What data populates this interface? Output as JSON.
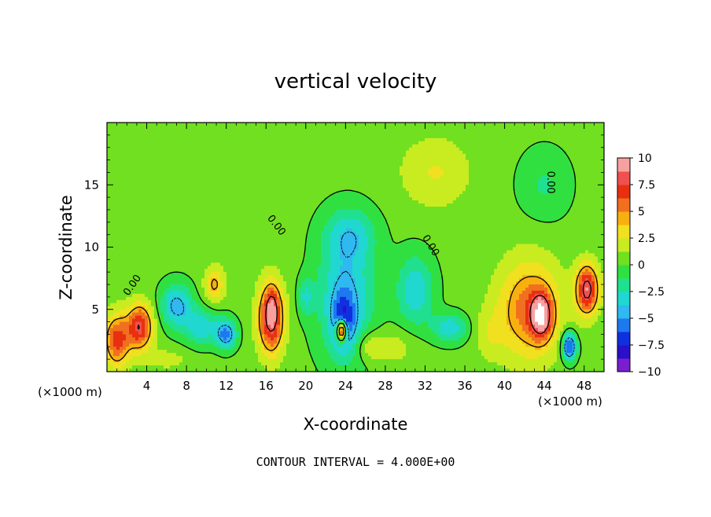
{
  "chart_data": {
    "type": "heatmap",
    "title": "vertical velocity",
    "xlabel": "X-coordinate",
    "ylabel": "Z-coordinate",
    "x_unit_label": "(×1000 m)",
    "x_unit_label_right": "(×1000 m)",
    "xlim": [
      0,
      50
    ],
    "ylim": [
      0,
      20
    ],
    "x_ticks": [
      4,
      8,
      12,
      16,
      20,
      24,
      28,
      32,
      36,
      40,
      44,
      48
    ],
    "x_tick_labels": [
      "4",
      "8",
      "12",
      "16",
      "20",
      "24",
      "28",
      "32",
      "36",
      "40",
      "44",
      "48"
    ],
    "y_ticks": [
      5,
      10,
      15
    ],
    "y_tick_labels": [
      "5",
      "10",
      "15"
    ],
    "footer": "CONTOUR INTERVAL = 4.000E+00",
    "contour_labels": [
      "0.00",
      "0.00",
      "0.00",
      "0.00"
    ],
    "colorbar": {
      "min": -10,
      "max": 10,
      "ticks": [
        10,
        7.5,
        5,
        2.5,
        0,
        -2.5,
        -5,
        -7.5,
        -10
      ],
      "tick_labels": [
        "10",
        "7.5",
        "5",
        "2.5",
        "0",
        "−2.5",
        "−5",
        "−7.5",
        "−10"
      ],
      "colors": [
        "#7a1fd0",
        "#2a10c8",
        "#1030e0",
        "#1e78f0",
        "#30b8f0",
        "#20d8d0",
        "#20e090",
        "#30e040",
        "#70e020",
        "#c8ec20",
        "#f0e020",
        "#f8b010",
        "#f07020",
        "#e83010",
        "#f05050",
        "#f8a0a0"
      ]
    },
    "field": {
      "background": 0.4,
      "features": [
        {
          "x": 1.0,
          "z": 2.5,
          "sx": 0.9,
          "sz": 1.5,
          "w": 6.5
        },
        {
          "x": 3.3,
          "z": 3.6,
          "sx": 0.9,
          "sz": 1.3,
          "w": 7.5
        },
        {
          "x": 7.0,
          "z": 5.3,
          "sx": 1.1,
          "sz": 1.2,
          "w": -5.0
        },
        {
          "x": 9.5,
          "z": 3.6,
          "sx": 1.2,
          "sz": 1.0,
          "w": -4.0
        },
        {
          "x": 10.8,
          "z": 7.0,
          "sx": 0.7,
          "sz": 1.0,
          "w": 4.0
        },
        {
          "x": 12.0,
          "z": 3.0,
          "sx": 0.7,
          "sz": 0.8,
          "w": -6.0
        },
        {
          "x": 16.5,
          "z": 4.3,
          "sx": 0.9,
          "sz": 2.0,
          "w": 8.5
        },
        {
          "x": 16.6,
          "z": 5.2,
          "sx": 0.35,
          "sz": 0.9,
          "w": 3.0
        },
        {
          "x": 20.0,
          "z": 6.0,
          "sx": 0.5,
          "sz": 1.0,
          "w": -3.0
        },
        {
          "x": 24.0,
          "z": 6.0,
          "sx": 2.0,
          "sz": 3.5,
          "w": -4.5
        },
        {
          "x": 23.8,
          "z": 4.0,
          "sx": 0.8,
          "sz": 1.6,
          "w": -5.0
        },
        {
          "x": 23.6,
          "z": 3.3,
          "sx": 0.35,
          "sz": 0.6,
          "w": 14.0
        },
        {
          "x": 24.5,
          "z": 11.0,
          "sx": 1.8,
          "sz": 1.5,
          "w": -3.0
        },
        {
          "x": 26.5,
          "z": 2.0,
          "sx": 1.0,
          "sz": 0.8,
          "w": 2.5
        },
        {
          "x": 31.0,
          "z": 6.5,
          "sx": 1.3,
          "sz": 2.0,
          "w": -4.0
        },
        {
          "x": 34.5,
          "z": 3.5,
          "sx": 1.2,
          "sz": 0.8,
          "w": -4.0
        },
        {
          "x": 33.0,
          "z": 16.0,
          "sx": 2.5,
          "sz": 2.0,
          "w": 2.2
        },
        {
          "x": 44.0,
          "z": 15.0,
          "sx": 1.8,
          "sz": 2.0,
          "w": -1.8
        },
        {
          "x": 42.5,
          "z": 5.0,
          "sx": 2.2,
          "sz": 2.8,
          "w": 5.5
        },
        {
          "x": 43.7,
          "z": 4.5,
          "sx": 0.7,
          "sz": 1.2,
          "w": 8.0
        },
        {
          "x": 46.5,
          "z": 2.0,
          "sx": 0.5,
          "sz": 0.8,
          "w": -8.0
        },
        {
          "x": 48.3,
          "z": 6.6,
          "sx": 0.8,
          "sz": 1.4,
          "w": 8.5
        },
        {
          "x": 6.0,
          "z": 1.0,
          "sx": 1.5,
          "sz": 0.6,
          "w": 1.5
        },
        {
          "x": 29.0,
          "z": 2.0,
          "sx": 1.5,
          "sz": 1.0,
          "w": 1.5
        },
        {
          "x": 38.5,
          "z": 3.0,
          "sx": 1.0,
          "sz": 1.5,
          "w": 1.5
        }
      ]
    }
  }
}
